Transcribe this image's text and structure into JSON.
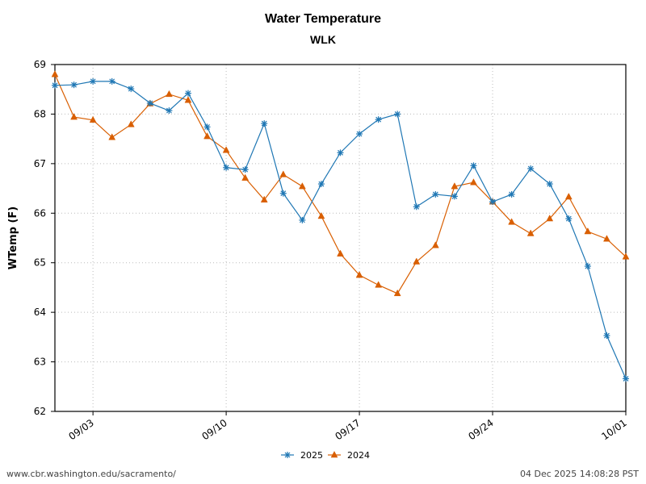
{
  "header": {
    "title": "Water Temperature",
    "subtitle": "WLK"
  },
  "footer": {
    "source_url": "www.cbr.washington.edu/sacramento/",
    "timestamp": "04 Dec 2025 14:08:28 PST"
  },
  "chart_data": {
    "type": "line",
    "title": "Water Temperature",
    "subtitle": "WLK",
    "xlabel": "",
    "ylabel": "WTemp (F)",
    "ylim": [
      62,
      69
    ],
    "yticks": [
      62,
      63,
      64,
      65,
      66,
      67,
      68,
      69
    ],
    "xlim_days": [
      1,
      31
    ],
    "xticks": [
      {
        "day": 3,
        "label": "09/03"
      },
      {
        "day": 10,
        "label": "09/10"
      },
      {
        "day": 17,
        "label": "09/17"
      },
      {
        "day": 24,
        "label": "09/24"
      },
      {
        "day": 31,
        "label": "10/01"
      }
    ],
    "grid": true,
    "legend_position": "bottom-center",
    "x": [
      "09/01",
      "09/02",
      "09/03",
      "09/04",
      "09/05",
      "09/06",
      "09/07",
      "09/08",
      "09/09",
      "09/10",
      "09/11",
      "09/12",
      "09/13",
      "09/14",
      "09/15",
      "09/16",
      "09/17",
      "09/18",
      "09/19",
      "09/20",
      "09/21",
      "09/22",
      "09/23",
      "09/24",
      "09/25",
      "09/26",
      "09/27",
      "09/28",
      "09/29",
      "09/30",
      "10/01"
    ],
    "series": [
      {
        "name": "2025",
        "color": "#1f77b4",
        "marker": "asterisk",
        "values": [
          68.58,
          68.59,
          68.66,
          68.66,
          68.51,
          68.22,
          68.07,
          68.42,
          67.74,
          66.92,
          66.88,
          67.81,
          66.4,
          65.86,
          66.59,
          67.22,
          67.6,
          67.89,
          68.0,
          66.13,
          66.38,
          66.34,
          66.96,
          66.23,
          66.38,
          66.9,
          66.59,
          65.89,
          64.93,
          63.53,
          62.66
        ]
      },
      {
        "name": "2024",
        "color": "#d95f02",
        "marker": "triangle",
        "values": [
          68.8,
          67.94,
          67.88,
          67.53,
          67.79,
          68.21,
          68.4,
          68.28,
          67.55,
          67.27,
          66.71,
          66.27,
          66.78,
          66.54,
          65.94,
          65.18,
          64.75,
          64.55,
          64.38,
          65.02,
          65.35,
          66.54,
          66.62,
          66.23,
          65.82,
          65.59,
          65.89,
          66.33,
          65.63,
          65.48,
          65.12
        ]
      }
    ]
  }
}
